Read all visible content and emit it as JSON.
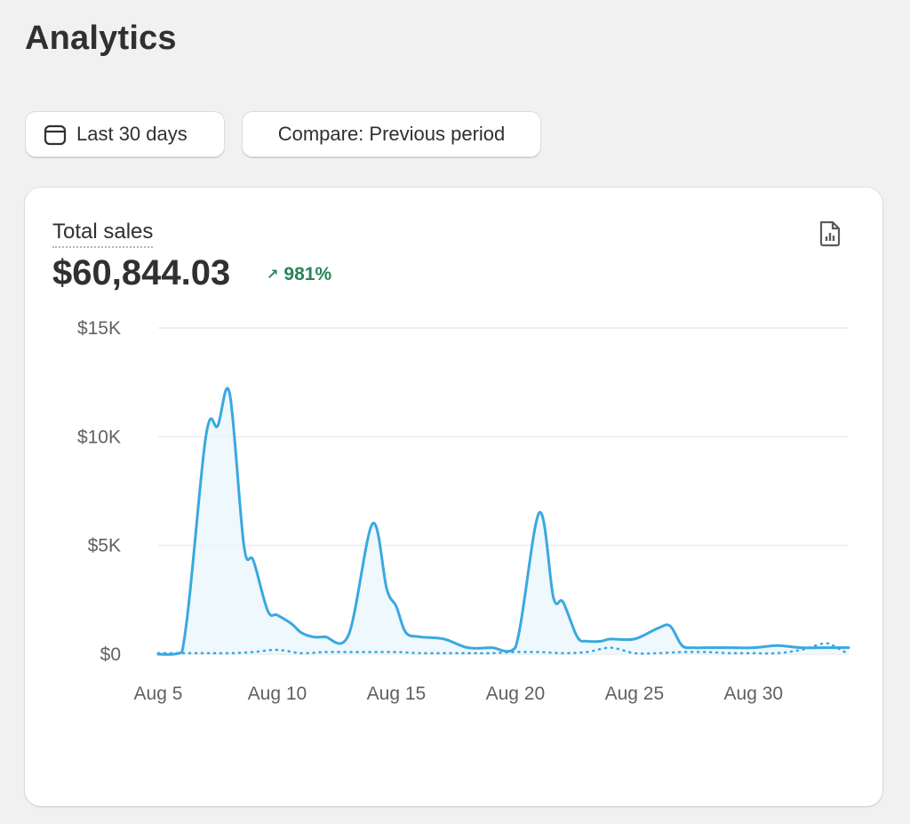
{
  "page": {
    "title": "Analytics"
  },
  "toolbar": {
    "date_range_label": "Last 30 days",
    "date_icon": "calendar-icon",
    "compare_label": "Compare: Previous period"
  },
  "card": {
    "metric_label": "Total sales",
    "metric_value": "$60,844.03",
    "metric_change": "981%",
    "change_direction": "up",
    "report_icon": "report-icon",
    "positive_color": "#29845a"
  },
  "chart_data": {
    "type": "line",
    "ylim": [
      0,
      15000
    ],
    "yticks": [
      {
        "value": 0,
        "label": "$0"
      },
      {
        "value": 5000,
        "label": "$5K"
      },
      {
        "value": 10000,
        "label": "$10K"
      },
      {
        "value": 15000,
        "label": "$15K"
      }
    ],
    "xlim": [
      5,
      34
    ],
    "xticks": [
      {
        "value": 5,
        "label": "Aug 5"
      },
      {
        "value": 10,
        "label": "Aug 10"
      },
      {
        "value": 15,
        "label": "Aug 15"
      },
      {
        "value": 20,
        "label": "Aug 20"
      },
      {
        "value": 25,
        "label": "Aug 25"
      },
      {
        "value": 30,
        "label": "Aug 30"
      }
    ],
    "grid": true,
    "series": [
      {
        "style": "solid",
        "color": "#3aa8e0",
        "x": [
          5,
          6,
          7,
          7.5,
          8,
          8.6,
          9,
          9.6,
          10,
          10.6,
          11,
          11.5,
          12,
          13,
          14,
          14.6,
          15,
          15.4,
          16,
          17,
          18,
          19,
          20,
          21,
          21.6,
          22,
          22.6,
          23,
          23.6,
          24,
          25,
          26,
          26.5,
          27,
          27.5,
          28,
          29,
          30,
          31,
          32,
          33,
          34
        ],
        "y": [
          0,
          100,
          10000,
          10500,
          12000,
          5000,
          4300,
          2000,
          1800,
          1400,
          1000,
          800,
          800,
          900,
          6000,
          3000,
          2200,
          1000,
          800,
          700,
          300,
          300,
          300,
          6500,
          2600,
          2400,
          800,
          600,
          600,
          700,
          700,
          1200,
          1300,
          400,
          300,
          300,
          300,
          300,
          400,
          300,
          300,
          300
        ]
      },
      {
        "style": "dotted",
        "color": "#3aa8e0",
        "x": [
          5,
          6,
          7,
          8,
          9,
          10,
          11,
          12,
          13,
          14,
          15,
          16,
          17,
          18,
          19,
          20,
          21,
          22,
          23,
          24,
          25,
          26,
          27,
          28,
          29,
          30,
          31,
          32,
          33,
          33.5,
          34
        ],
        "y": [
          50,
          50,
          50,
          50,
          100,
          200,
          50,
          100,
          100,
          100,
          100,
          50,
          50,
          50,
          50,
          100,
          100,
          50,
          100,
          300,
          50,
          50,
          100,
          100,
          50,
          50,
          50,
          200,
          500,
          300,
          0
        ]
      }
    ]
  }
}
